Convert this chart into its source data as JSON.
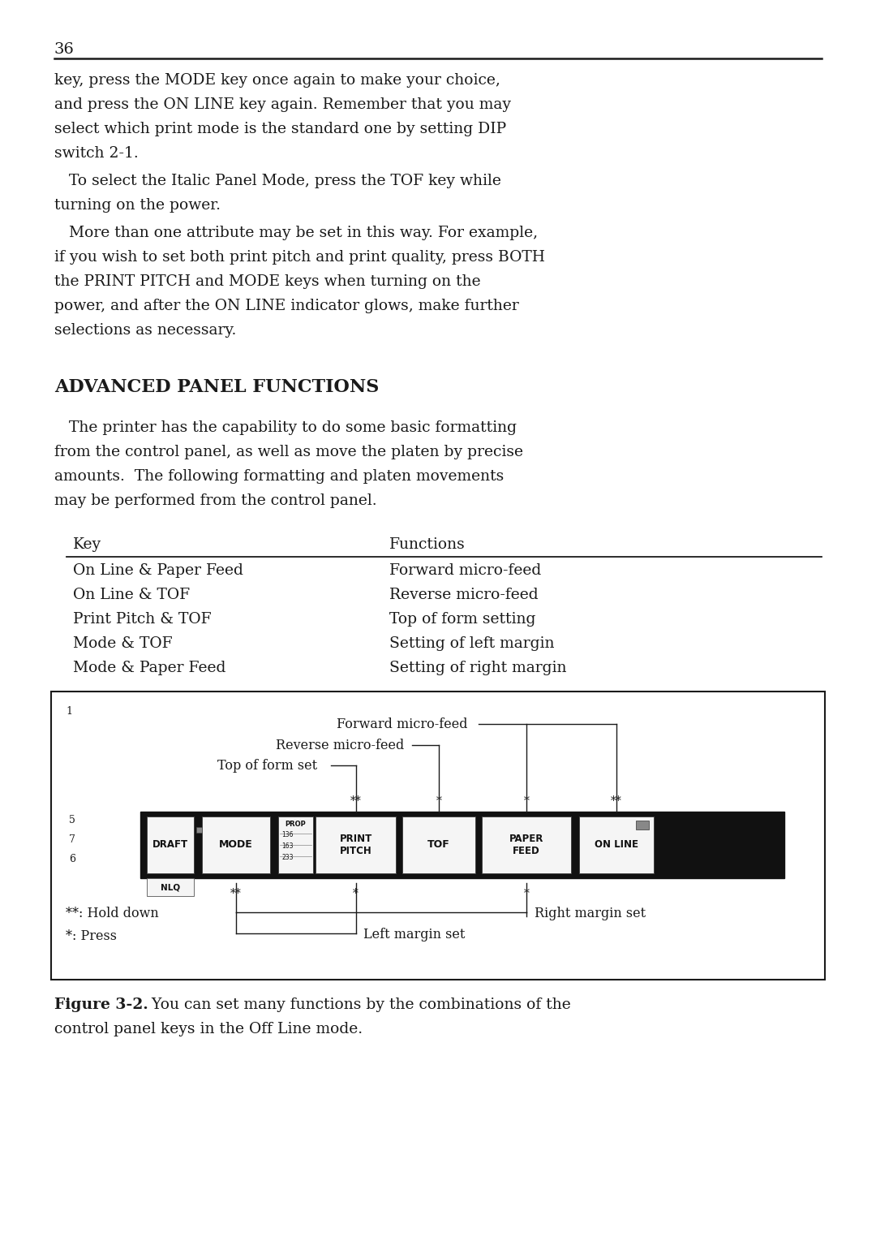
{
  "page_number": "36",
  "background_color": "#ffffff",
  "text_color": "#1a1a1a",
  "section_title": "ADVANCED PANEL FUNCTIONS",
  "table_header_key": "Key",
  "table_header_func": "Functions",
  "table_rows": [
    [
      "On Line & Paper Feed",
      "Forward micro-feed"
    ],
    [
      "On Line & TOF",
      "Reverse micro-feed"
    ],
    [
      "Print Pitch & TOF",
      "Top of form setting"
    ],
    [
      "Mode & TOF",
      "Setting of left margin"
    ],
    [
      "Mode & Paper Feed",
      "Setting of right margin"
    ]
  ],
  "figure_caption_bold": "Figure 3-2.",
  "figure_caption_rest": "  You can set many functions by the combinations of the",
  "figure_caption_line2": "control panel keys in the Off Line mode.",
  "diagram_legend1": "**: Hold down",
  "diagram_legend2": "*: Press"
}
